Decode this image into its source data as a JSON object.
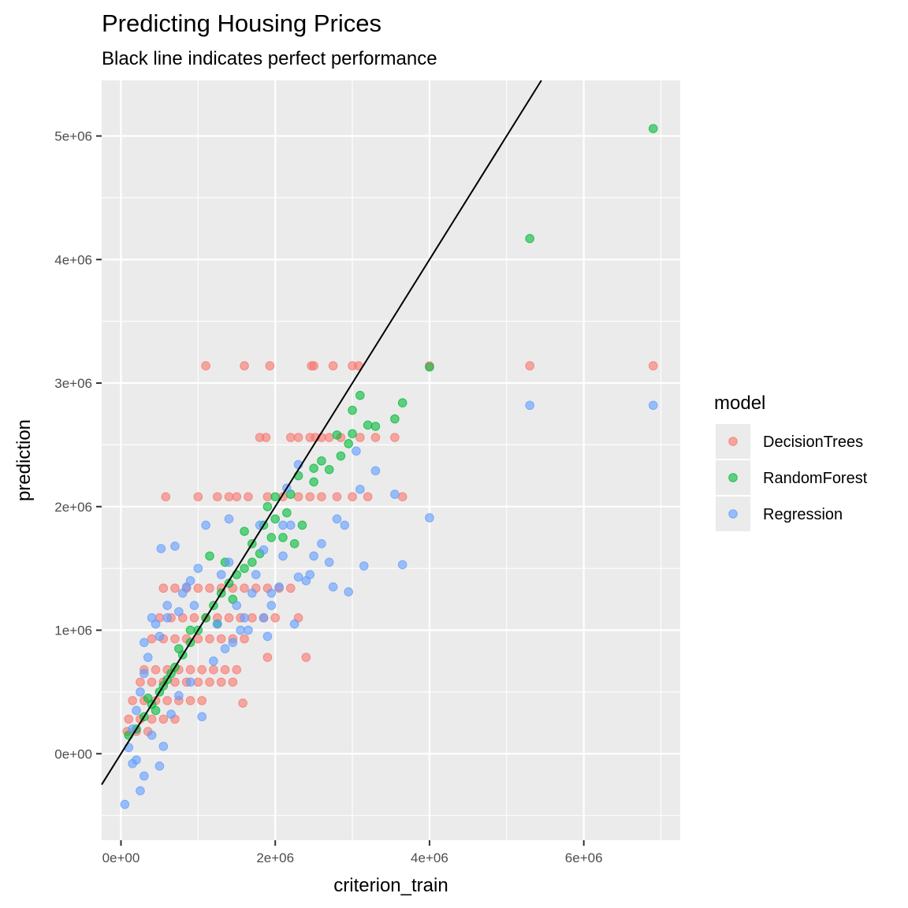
{
  "chart_data": {
    "type": "scatter",
    "title": "Predicting Housing Prices",
    "subtitle": "Black line indicates perfect performance",
    "xlabel": "criterion_train",
    "ylabel": "prediction",
    "xlim": [
      -250000,
      7250000
    ],
    "ylim": [
      -700000,
      5450000
    ],
    "x_ticks": [
      0,
      2000000,
      4000000,
      6000000
    ],
    "x_tick_labels": [
      "0e+00",
      "2e+06",
      "4e+06",
      "6e+06"
    ],
    "y_ticks": [
      0,
      1000000,
      2000000,
      3000000,
      4000000,
      5000000
    ],
    "y_tick_labels": [
      "0e+00",
      "1e+06",
      "2e+06",
      "3e+06",
      "4e+06",
      "5e+06"
    ],
    "grid": true,
    "legend_title": "model",
    "legend_position": "right",
    "reference_line": {
      "slope": 1,
      "intercept": 0,
      "color": "#000000"
    },
    "series": [
      {
        "name": "DecisionTrees",
        "color": "#F8766D",
        "points": [
          [
            1100000,
            3140000
          ],
          [
            1600000,
            3140000
          ],
          [
            1930000,
            3140000
          ],
          [
            2470000,
            3140000
          ],
          [
            2500000,
            3140000
          ],
          [
            2750000,
            3140000
          ],
          [
            3000000,
            3140000
          ],
          [
            3080000,
            3140000
          ],
          [
            4000000,
            3140000
          ],
          [
            5300000,
            3140000
          ],
          [
            6900000,
            3140000
          ],
          [
            1800000,
            2560000
          ],
          [
            1880000,
            2560000
          ],
          [
            2200000,
            2560000
          ],
          [
            2300000,
            2560000
          ],
          [
            2450000,
            2560000
          ],
          [
            2520000,
            2560000
          ],
          [
            2600000,
            2560000
          ],
          [
            2700000,
            2560000
          ],
          [
            2850000,
            2560000
          ],
          [
            3100000,
            2560000
          ],
          [
            3300000,
            2560000
          ],
          [
            3550000,
            2560000
          ],
          [
            580000,
            2080000
          ],
          [
            1000000,
            2080000
          ],
          [
            1250000,
            2080000
          ],
          [
            1400000,
            2080000
          ],
          [
            1500000,
            2080000
          ],
          [
            1650000,
            2080000
          ],
          [
            1900000,
            2080000
          ],
          [
            2100000,
            2080000
          ],
          [
            2300000,
            2080000
          ],
          [
            2450000,
            2080000
          ],
          [
            2600000,
            2080000
          ],
          [
            2800000,
            2080000
          ],
          [
            3000000,
            2080000
          ],
          [
            3200000,
            2080000
          ],
          [
            3650000,
            2080000
          ],
          [
            550000,
            1340000
          ],
          [
            700000,
            1340000
          ],
          [
            850000,
            1340000
          ],
          [
            1000000,
            1340000
          ],
          [
            1150000,
            1340000
          ],
          [
            1300000,
            1340000
          ],
          [
            1450000,
            1340000
          ],
          [
            1600000,
            1340000
          ],
          [
            1750000,
            1340000
          ],
          [
            1900000,
            1340000
          ],
          [
            2050000,
            1340000
          ],
          [
            2200000,
            1340000
          ],
          [
            500000,
            1100000
          ],
          [
            650000,
            1100000
          ],
          [
            800000,
            1100000
          ],
          [
            950000,
            1100000
          ],
          [
            1100000,
            1100000
          ],
          [
            1250000,
            1100000
          ],
          [
            1400000,
            1100000
          ],
          [
            1550000,
            1100000
          ],
          [
            1700000,
            1100000
          ],
          [
            1850000,
            1100000
          ],
          [
            2000000,
            1100000
          ],
          [
            2300000,
            1100000
          ],
          [
            400000,
            930000
          ],
          [
            550000,
            930000
          ],
          [
            700000,
            930000
          ],
          [
            850000,
            930000
          ],
          [
            1000000,
            930000
          ],
          [
            1150000,
            930000
          ],
          [
            1300000,
            930000
          ],
          [
            1450000,
            930000
          ],
          [
            1600000,
            930000
          ],
          [
            2400000,
            780000
          ],
          [
            1900000,
            780000
          ],
          [
            300000,
            680000
          ],
          [
            450000,
            680000
          ],
          [
            600000,
            680000
          ],
          [
            750000,
            680000
          ],
          [
            900000,
            680000
          ],
          [
            1050000,
            680000
          ],
          [
            1200000,
            680000
          ],
          [
            1350000,
            680000
          ],
          [
            1500000,
            680000
          ],
          [
            250000,
            580000
          ],
          [
            400000,
            580000
          ],
          [
            550000,
            580000
          ],
          [
            700000,
            580000
          ],
          [
            850000,
            580000
          ],
          [
            1000000,
            580000
          ],
          [
            1150000,
            580000
          ],
          [
            1300000,
            580000
          ],
          [
            1450000,
            580000
          ],
          [
            150000,
            430000
          ],
          [
            300000,
            430000
          ],
          [
            450000,
            430000
          ],
          [
            600000,
            430000
          ],
          [
            750000,
            430000
          ],
          [
            900000,
            430000
          ],
          [
            1050000,
            430000
          ],
          [
            1580000,
            410000
          ],
          [
            100000,
            280000
          ],
          [
            250000,
            280000
          ],
          [
            400000,
            280000
          ],
          [
            550000,
            280000
          ],
          [
            700000,
            280000
          ],
          [
            80000,
            180000
          ],
          [
            200000,
            180000
          ],
          [
            350000,
            180000
          ]
        ]
      },
      {
        "name": "RandomForest",
        "color": "#00BA38",
        "points": [
          [
            6900000,
            5060000
          ],
          [
            5300000,
            4170000
          ],
          [
            4000000,
            3130000
          ],
          [
            3100000,
            2900000
          ],
          [
            3000000,
            2780000
          ],
          [
            3000000,
            2590000
          ],
          [
            3200000,
            2660000
          ],
          [
            3300000,
            2650000
          ],
          [
            3550000,
            2710000
          ],
          [
            3650000,
            2840000
          ],
          [
            2800000,
            2580000
          ],
          [
            2950000,
            2510000
          ],
          [
            2850000,
            2410000
          ],
          [
            2600000,
            2370000
          ],
          [
            2500000,
            2310000
          ],
          [
            2700000,
            2300000
          ],
          [
            2500000,
            2200000
          ],
          [
            2300000,
            2250000
          ],
          [
            2200000,
            2100000
          ],
          [
            2000000,
            2080000
          ],
          [
            1900000,
            2000000
          ],
          [
            2150000,
            1950000
          ],
          [
            2350000,
            1850000
          ],
          [
            1950000,
            1750000
          ],
          [
            2250000,
            1700000
          ],
          [
            1800000,
            1620000
          ],
          [
            1600000,
            1500000
          ],
          [
            1500000,
            1450000
          ],
          [
            1400000,
            1380000
          ],
          [
            1300000,
            1300000
          ],
          [
            1200000,
            1200000
          ],
          [
            1100000,
            1100000
          ],
          [
            1000000,
            1000000
          ],
          [
            900000,
            900000
          ],
          [
            800000,
            800000
          ],
          [
            700000,
            700000
          ],
          [
            600000,
            600000
          ],
          [
            500000,
            500000
          ],
          [
            400000,
            400000
          ],
          [
            300000,
            300000
          ],
          [
            200000,
            200000
          ],
          [
            100000,
            150000
          ],
          [
            1150000,
            1600000
          ],
          [
            1350000,
            1550000
          ],
          [
            1700000,
            1700000
          ],
          [
            1850000,
            1850000
          ],
          [
            1250000,
            1050000
          ],
          [
            1450000,
            1250000
          ],
          [
            900000,
            1000000
          ],
          [
            750000,
            850000
          ],
          [
            650000,
            650000
          ],
          [
            550000,
            550000
          ],
          [
            450000,
            350000
          ],
          [
            350000,
            450000
          ],
          [
            1600000,
            1800000
          ],
          [
            1700000,
            1550000
          ],
          [
            2100000,
            1750000
          ],
          [
            2000000,
            1900000
          ]
        ]
      },
      {
        "name": "Regression",
        "color": "#619CFF",
        "points": [
          [
            6900000,
            2820000
          ],
          [
            5300000,
            2820000
          ],
          [
            4000000,
            1910000
          ],
          [
            3650000,
            1530000
          ],
          [
            3550000,
            2100000
          ],
          [
            3300000,
            2290000
          ],
          [
            3150000,
            1520000
          ],
          [
            3100000,
            2140000
          ],
          [
            3050000,
            2450000
          ],
          [
            2950000,
            1310000
          ],
          [
            2900000,
            1850000
          ],
          [
            2800000,
            1900000
          ],
          [
            2600000,
            1700000
          ],
          [
            2500000,
            1600000
          ],
          [
            2400000,
            1400000
          ],
          [
            2300000,
            2340000
          ],
          [
            2300000,
            1430000
          ],
          [
            2250000,
            1050000
          ],
          [
            2200000,
            1850000
          ],
          [
            2150000,
            2150000
          ],
          [
            2100000,
            1600000
          ],
          [
            2050000,
            1350000
          ],
          [
            1950000,
            1200000
          ],
          [
            1900000,
            950000
          ],
          [
            1850000,
            1650000
          ],
          [
            1750000,
            1450000
          ],
          [
            1700000,
            1300000
          ],
          [
            1600000,
            1100000
          ],
          [
            1550000,
            1000000
          ],
          [
            1500000,
            1200000
          ],
          [
            1400000,
            1550000
          ],
          [
            1300000,
            1450000
          ],
          [
            1250000,
            1050000
          ],
          [
            1100000,
            1850000
          ],
          [
            1000000,
            1500000
          ],
          [
            900000,
            1400000
          ],
          [
            800000,
            1300000
          ],
          [
            700000,
            1680000
          ],
          [
            520000,
            1660000
          ],
          [
            600000,
            1100000
          ],
          [
            500000,
            950000
          ],
          [
            400000,
            1100000
          ],
          [
            350000,
            780000
          ],
          [
            300000,
            650000
          ],
          [
            250000,
            500000
          ],
          [
            200000,
            350000
          ],
          [
            150000,
            200000
          ],
          [
            100000,
            50000
          ],
          [
            150000,
            -80000
          ],
          [
            200000,
            -50000
          ],
          [
            300000,
            -180000
          ],
          [
            250000,
            -300000
          ],
          [
            50000,
            -410000
          ],
          [
            500000,
            -100000
          ],
          [
            550000,
            60000
          ],
          [
            400000,
            150000
          ],
          [
            650000,
            320000
          ],
          [
            750000,
            470000
          ],
          [
            900000,
            580000
          ],
          [
            1050000,
            300000
          ],
          [
            1200000,
            750000
          ],
          [
            1350000,
            850000
          ],
          [
            1450000,
            900000
          ],
          [
            1650000,
            1000000
          ],
          [
            1850000,
            1100000
          ],
          [
            1950000,
            1300000
          ],
          [
            2100000,
            1850000
          ],
          [
            2450000,
            1450000
          ],
          [
            2700000,
            1550000
          ],
          [
            2750000,
            1350000
          ],
          [
            1800000,
            1850000
          ],
          [
            1400000,
            1900000
          ],
          [
            300000,
            900000
          ],
          [
            450000,
            1050000
          ],
          [
            600000,
            1200000
          ],
          [
            750000,
            1150000
          ],
          [
            850000,
            1350000
          ],
          [
            950000,
            1200000
          ]
        ]
      }
    ]
  }
}
